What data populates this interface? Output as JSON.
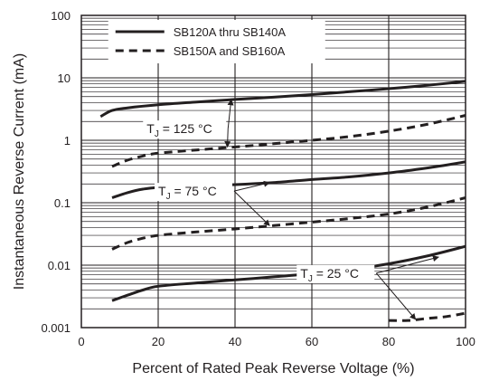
{
  "chart_data": {
    "type": "line",
    "title": "",
    "xlabel": "Percent of Rated Peak Reverse Voltage (%)",
    "ylabel": "Instantaneous Reverse Current (mA)",
    "xlim": [
      0,
      100
    ],
    "ylim": [
      0.001,
      100
    ],
    "y_scale": "log",
    "grid": true,
    "legend_position": "top-right",
    "x_ticks": [
      "0",
      "20",
      "40",
      "60",
      "80",
      "100"
    ],
    "y_ticks": [
      "0.001",
      "0.01",
      "0.1",
      "1",
      "10",
      "100"
    ],
    "legend": [
      {
        "label": "SB120A thru SB140A",
        "style": "solid"
      },
      {
        "label": "SB150A and SB160A",
        "style": "dashed"
      }
    ],
    "annotations": [
      {
        "base": "T",
        "sub": "J",
        "rest": " = 125 °C"
      },
      {
        "base": "T",
        "sub": "J",
        "rest": " = 75 °C"
      },
      {
        "base": "T",
        "sub": "J",
        "rest": " = 25 °C"
      }
    ],
    "series": [
      {
        "name": "SB120A thru SB140A",
        "condition": "TJ = 125 °C",
        "style": "solid",
        "x": [
          5,
          8,
          12,
          20,
          30,
          40,
          50,
          60,
          70,
          80,
          90,
          100
        ],
        "y": [
          2.4,
          3.0,
          3.3,
          3.7,
          4.1,
          4.5,
          4.9,
          5.4,
          6.0,
          6.7,
          7.6,
          8.8
        ]
      },
      {
        "name": "SB150A and SB160A",
        "condition": "TJ = 125 °C",
        "style": "dashed",
        "x": [
          8,
          12,
          16,
          20,
          30,
          40,
          50,
          60,
          70,
          80,
          90,
          100
        ],
        "y": [
          0.38,
          0.48,
          0.56,
          0.62,
          0.7,
          0.78,
          0.88,
          1.0,
          1.15,
          1.4,
          1.8,
          2.5
        ]
      },
      {
        "name": "SB120A thru SB140A",
        "condition": "TJ = 75 °C",
        "style": "solid",
        "x": [
          8,
          12,
          16,
          20,
          30,
          40,
          50,
          60,
          70,
          80,
          90,
          100
        ],
        "y": [
          0.12,
          0.145,
          0.165,
          0.175,
          0.185,
          0.195,
          0.21,
          0.235,
          0.26,
          0.3,
          0.36,
          0.45
        ]
      },
      {
        "name": "SB150A and SB160A",
        "condition": "TJ = 75 °C",
        "style": "dashed",
        "x": [
          8,
          12,
          16,
          20,
          30,
          40,
          50,
          60,
          70,
          80,
          90,
          100
        ],
        "y": [
          0.018,
          0.023,
          0.027,
          0.03,
          0.034,
          0.038,
          0.043,
          0.049,
          0.056,
          0.066,
          0.085,
          0.12
        ]
      },
      {
        "name": "SB120A thru SB140A",
        "condition": "TJ = 25 °C",
        "style": "solid",
        "x": [
          8,
          12,
          16,
          20,
          30,
          40,
          50,
          60,
          70,
          80,
          90,
          100
        ],
        "y": [
          0.0027,
          0.0033,
          0.004,
          0.0046,
          0.0052,
          0.0058,
          0.0065,
          0.0073,
          0.0085,
          0.0105,
          0.014,
          0.02
        ]
      },
      {
        "name": "SB150A and SB160A",
        "condition": "TJ = 25 °C",
        "style": "dashed",
        "x": [
          80,
          85,
          90,
          95,
          100
        ],
        "y": [
          0.0013,
          0.0013,
          0.0014,
          0.0015,
          0.0017
        ]
      }
    ]
  }
}
